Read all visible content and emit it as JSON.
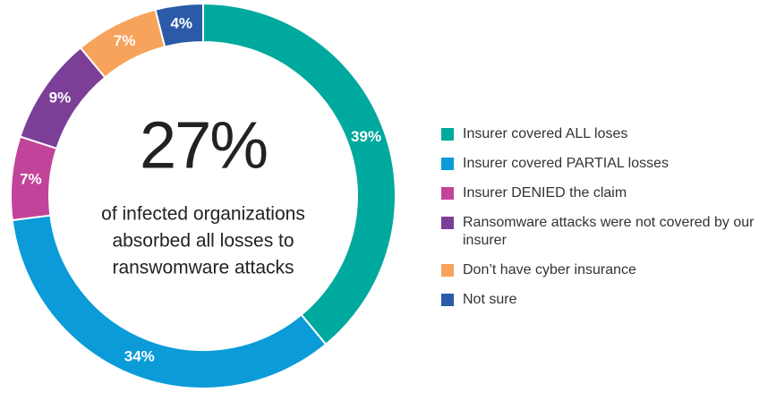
{
  "chart_data": {
    "type": "donut",
    "categories": [
      "Insurer covered ALL loses",
      "Insurer covered PARTIAL losses",
      "Insurer DENIED the claim",
      "Ransomware attacks were not covered by our insurer",
      "Don’t have cyber insurance",
      "Not sure"
    ],
    "values": [
      39,
      34,
      7,
      9,
      7,
      4
    ],
    "value_labels": [
      "39%",
      "34%",
      "7%",
      "9%",
      "7%",
      "4%"
    ],
    "colors": [
      "#00a99d",
      "#0a9bd8",
      "#c2449a",
      "#7b3f98",
      "#f7a35c",
      "#2b5ba8"
    ],
    "center_value": "27%",
    "center_caption": [
      "of infected organizations",
      "absorbed all losses to",
      "ranswomware attacks"
    ],
    "legend": "right"
  }
}
